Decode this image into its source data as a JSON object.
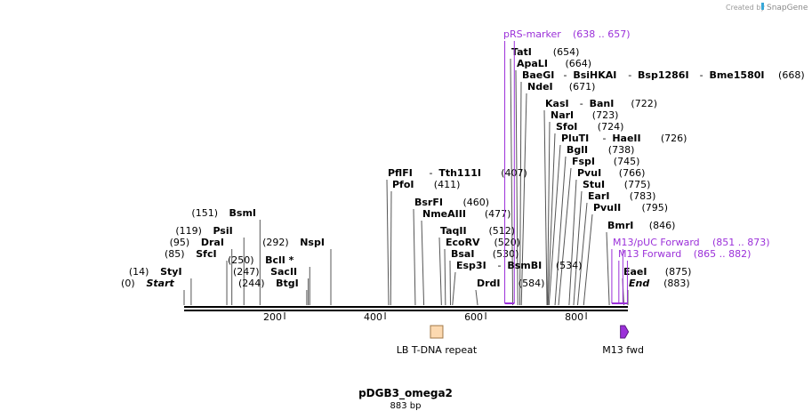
{
  "watermark": {
    "created_by": "Created by",
    "brand": "SnapGene"
  },
  "plasmid": {
    "name": "pDGB3_omega2",
    "length_text": "883 bp",
    "length": 883
  },
  "colors": {
    "feature_purple": "#9b30d9",
    "lb_fill": "#fcd9b0",
    "lb_stroke": "#a07848",
    "line": "#000000",
    "leader": "#555555"
  },
  "ruler": {
    "ticks": [
      200,
      400,
      600,
      800
    ]
  },
  "sites": [
    {
      "pos": 0,
      "label_y": 322,
      "parts": [
        {
          "t": "(0)",
          "s": "n"
        },
        {
          "t": "Start",
          "s": "i"
        }
      ]
    },
    {
      "pos": 14,
      "label_y": 309,
      "parts": [
        {
          "t": "(14)",
          "s": "n"
        },
        {
          "t": "StyI",
          "s": "b"
        }
      ]
    },
    {
      "pos": 85,
      "label_y": 289,
      "parts": [
        {
          "t": "(85)",
          "s": "n"
        },
        {
          "t": "SfcI",
          "s": "b"
        }
      ]
    },
    {
      "pos": 95,
      "label_y": 276,
      "parts": [
        {
          "t": "(95)",
          "s": "n"
        },
        {
          "t": "DraI",
          "s": "b"
        }
      ]
    },
    {
      "pos": 119,
      "label_y": 263,
      "parts": [
        {
          "t": "(119)",
          "s": "n"
        },
        {
          "t": "PsiI",
          "s": "b"
        }
      ]
    },
    {
      "pos": 151,
      "label_y": 243,
      "parts": [
        {
          "t": "(151)",
          "s": "n"
        },
        {
          "t": "BsmI",
          "s": "b"
        }
      ]
    },
    {
      "pos": 244,
      "label_y": 322,
      "parts": [
        {
          "t": "(244)",
          "s": "n"
        },
        {
          "t": "BtgI",
          "s": "b"
        }
      ]
    },
    {
      "pos": 247,
      "label_y": 309,
      "parts": [
        {
          "t": "(247)",
          "s": "n"
        },
        {
          "t": "SacII",
          "s": "b"
        }
      ]
    },
    {
      "pos": 250,
      "label_y": 296,
      "parts": [
        {
          "t": "(250)",
          "s": "n"
        },
        {
          "t": "BclI *",
          "s": "b"
        }
      ]
    },
    {
      "pos": 292,
      "label_y": 276,
      "parts": [
        {
          "t": "(292)",
          "s": "n"
        },
        {
          "t": "NspI",
          "s": "b"
        }
      ]
    },
    {
      "pos": 407,
      "label_y": 198,
      "parts": [
        {
          "t": "PflFI",
          "s": "b"
        },
        {
          "t": "-",
          "s": "n"
        },
        {
          "t": "Tth111I",
          "s": "b"
        },
        {
          "t": "(407)",
          "s": "n"
        }
      ]
    },
    {
      "pos": 411,
      "label_y": 211,
      "parts": [
        {
          "t": "PfoI",
          "s": "b"
        },
        {
          "t": "(411)",
          "s": "n"
        }
      ]
    },
    {
      "pos": 460,
      "label_y": 231,
      "parts": [
        {
          "t": "BsrFI",
          "s": "b"
        },
        {
          "t": "(460)",
          "s": "n"
        }
      ]
    },
    {
      "pos": 477,
      "label_y": 244,
      "parts": [
        {
          "t": "NmeAIII",
          "s": "b"
        },
        {
          "t": "(477)",
          "s": "n"
        }
      ]
    },
    {
      "pos": 512,
      "label_y": 263,
      "parts": [
        {
          "t": "TaqII",
          "s": "b"
        },
        {
          "t": "(512)",
          "s": "n"
        }
      ]
    },
    {
      "pos": 520,
      "label_y": 276,
      "parts": [
        {
          "t": "EcoRV",
          "s": "b"
        },
        {
          "t": "(520)",
          "s": "n"
        }
      ]
    },
    {
      "pos": 530,
      "label_y": 289,
      "parts": [
        {
          "t": "BsaI",
          "s": "b"
        },
        {
          "t": "(530)",
          "s": "n"
        }
      ]
    },
    {
      "pos": 534,
      "label_y": 302,
      "parts": [
        {
          "t": "Esp3I",
          "s": "b"
        },
        {
          "t": "-",
          "s": "n"
        },
        {
          "t": "BsmBI",
          "s": "b"
        },
        {
          "t": "(534)",
          "s": "n"
        }
      ]
    },
    {
      "pos": 584,
      "label_y": 322,
      "parts": [
        {
          "t": "DrdI",
          "s": "b"
        },
        {
          "t": "(584)",
          "s": "n"
        }
      ]
    },
    {
      "pos": 654,
      "label_y": 62,
      "parts": [
        {
          "t": "TatI",
          "s": "b"
        },
        {
          "t": "(654)",
          "s": "n"
        }
      ]
    },
    {
      "pos": 664,
      "label_y": 75,
      "parts": [
        {
          "t": "ApaLI",
          "s": "b"
        },
        {
          "t": "(664)",
          "s": "n"
        }
      ]
    },
    {
      "pos": 668,
      "label_y": 88,
      "parts": [
        {
          "t": "BaeGI",
          "s": "b"
        },
        {
          "t": "-",
          "s": "n"
        },
        {
          "t": "BsiHKAI",
          "s": "b"
        },
        {
          "t": "-",
          "s": "n"
        },
        {
          "t": "Bsp1286I",
          "s": "b"
        },
        {
          "t": "-",
          "s": "n"
        },
        {
          "t": "Bme1580I",
          "s": "b"
        },
        {
          "t": "(668)",
          "s": "n"
        }
      ]
    },
    {
      "pos": 671,
      "label_y": 101,
      "parts": [
        {
          "t": "NdeI",
          "s": "b"
        },
        {
          "t": "(671)",
          "s": "n"
        }
      ]
    },
    {
      "pos": 722,
      "label_y": 120,
      "parts": [
        {
          "t": "KasI",
          "s": "b"
        },
        {
          "t": "-",
          "s": "n"
        },
        {
          "t": "BanI",
          "s": "b"
        },
        {
          "t": "(722)",
          "s": "n"
        }
      ]
    },
    {
      "pos": 723,
      "label_y": 133,
      "parts": [
        {
          "t": "NarI",
          "s": "b"
        },
        {
          "t": "(723)",
          "s": "n"
        }
      ]
    },
    {
      "pos": 724,
      "label_y": 146,
      "parts": [
        {
          "t": "SfoI",
          "s": "b"
        },
        {
          "t": "(724)",
          "s": "n"
        }
      ]
    },
    {
      "pos": 726,
      "label_y": 159,
      "parts": [
        {
          "t": "PluTI",
          "s": "b"
        },
        {
          "t": "-",
          "s": "n"
        },
        {
          "t": "HaeII",
          "s": "b"
        },
        {
          "t": "(726)",
          "s": "n"
        }
      ]
    },
    {
      "pos": 738,
      "label_y": 172,
      "parts": [
        {
          "t": "BglI",
          "s": "b"
        },
        {
          "t": "(738)",
          "s": "n"
        }
      ]
    },
    {
      "pos": 745,
      "label_y": 185,
      "parts": [
        {
          "t": "FspI",
          "s": "b"
        },
        {
          "t": "(745)",
          "s": "n"
        }
      ]
    },
    {
      "pos": 766,
      "label_y": 198,
      "parts": [
        {
          "t": "PvuI",
          "s": "b"
        },
        {
          "t": "(766)",
          "s": "n"
        }
      ]
    },
    {
      "pos": 775,
      "label_y": 211,
      "parts": [
        {
          "t": "StuI",
          "s": "b"
        },
        {
          "t": "(775)",
          "s": "n"
        }
      ]
    },
    {
      "pos": 783,
      "label_y": 224,
      "parts": [
        {
          "t": "EarI",
          "s": "b"
        },
        {
          "t": "(783)",
          "s": "n"
        }
      ]
    },
    {
      "pos": 795,
      "label_y": 237,
      "parts": [
        {
          "t": "PvuII",
          "s": "b"
        },
        {
          "t": "(795)",
          "s": "n"
        }
      ]
    },
    {
      "pos": 846,
      "label_y": 257,
      "parts": [
        {
          "t": "BmrI",
          "s": "b"
        },
        {
          "t": "(846)",
          "s": "n"
        }
      ]
    },
    {
      "pos": 875,
      "label_y": 309,
      "parts": [
        {
          "t": "EaeI",
          "s": "b"
        },
        {
          "t": "(875)",
          "s": "n"
        }
      ]
    },
    {
      "pos": 883,
      "label_y": 322,
      "parts": [
        {
          "t": "End",
          "s": "i"
        },
        {
          "t": "(883)",
          "s": "n"
        }
      ]
    }
  ],
  "primers": [
    {
      "name": "pRS-marker",
      "range_text": "(638 .. 657)",
      "start": 638,
      "end": 657,
      "label_y": 42
    },
    {
      "name": "M13/pUC Forward",
      "range_text": "(851 .. 873)",
      "start": 851,
      "end": 873,
      "label_y": 276
    },
    {
      "name": "M13 Forward",
      "range_text": "(865 .. 882)",
      "start": 865,
      "end": 882,
      "label_y": 289
    }
  ],
  "features": [
    {
      "name": "LB T-DNA repeat",
      "start": 490,
      "end": 515,
      "kind": "box"
    },
    {
      "name": "M13 fwd",
      "start": 865,
      "end": 882,
      "kind": "arrow"
    }
  ]
}
